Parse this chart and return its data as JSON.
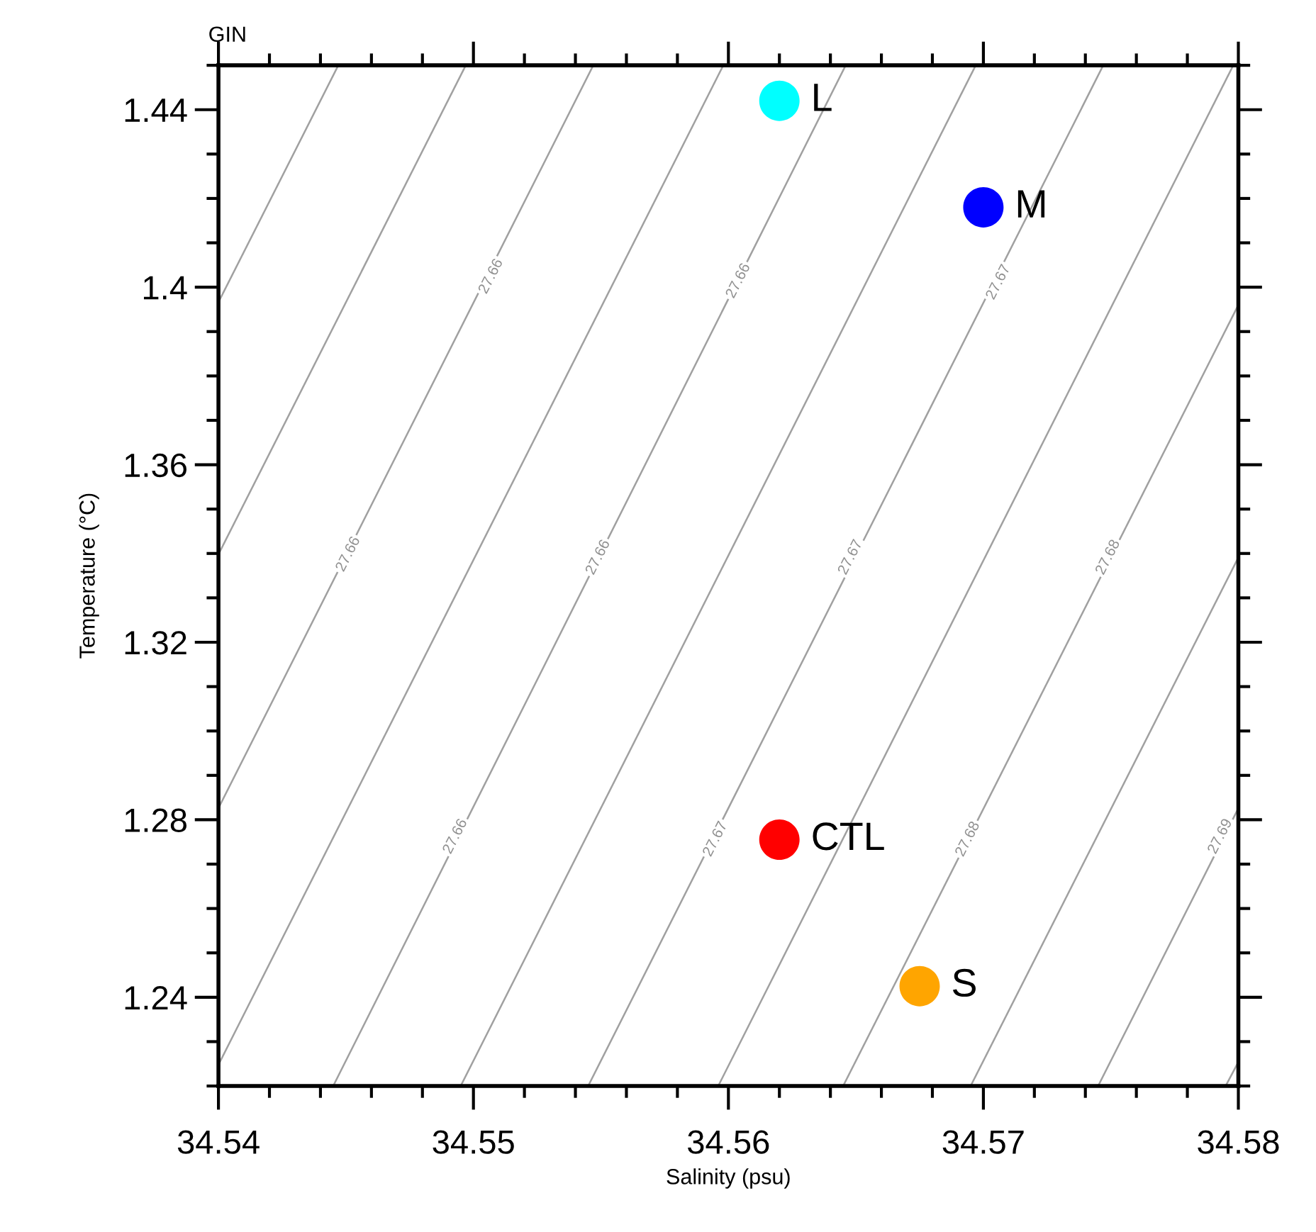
{
  "chart_data": {
    "type": "line",
    "title": "GIN",
    "xlabel": "Salinity (psu)",
    "ylabel": "Temperature (°C)",
    "xlim": [
      34.54,
      34.58
    ],
    "ylim": [
      1.22,
      1.45
    ],
    "xticks": [
      34.54,
      {
        "value": 34.542,
        "label": null
      },
      {
        "value": 34.544,
        "label": null
      },
      {
        "value": 34.546,
        "label": null
      },
      {
        "value": 34.548,
        "label": null
      },
      34.55,
      {
        "value": 34.552,
        "label": null
      },
      {
        "value": 34.554,
        "label": null
      },
      {
        "value": 34.556,
        "label": null
      },
      {
        "value": 34.558,
        "label": null
      },
      34.56,
      {
        "value": 34.562,
        "label": null
      },
      {
        "value": 34.564,
        "label": null
      },
      {
        "value": 34.566,
        "label": null
      },
      {
        "value": 34.568,
        "label": null
      },
      34.57,
      {
        "value": 34.572,
        "label": null
      },
      {
        "value": 34.574,
        "label": null
      },
      {
        "value": 34.576,
        "label": null
      },
      {
        "value": 34.578,
        "label": null
      },
      34.58
    ],
    "yticks": [
      {
        "value": 1.22,
        "label": null
      },
      {
        "value": 1.23,
        "label": null
      },
      1.24,
      {
        "value": 1.25,
        "label": null
      },
      {
        "value": 1.26,
        "label": null
      },
      {
        "value": 1.27,
        "label": null
      },
      1.28,
      {
        "value": 1.29,
        "label": null
      },
      {
        "value": 1.3,
        "label": null
      },
      {
        "value": 1.31,
        "label": null
      },
      1.32,
      {
        "value": 1.33,
        "label": null
      },
      {
        "value": 1.34,
        "label": null
      },
      {
        "value": 1.35,
        "label": null
      },
      1.36,
      {
        "value": 1.37,
        "label": null
      },
      {
        "value": 1.38,
        "label": null
      },
      {
        "value": 1.39,
        "label": null
      },
      1.4,
      {
        "value": 1.41,
        "label": null
      },
      {
        "value": 1.42,
        "label": null
      },
      {
        "value": 1.43,
        "label": null
      },
      1.44,
      {
        "value": 1.45,
        "label": null
      }
    ],
    "grid": false,
    "legend": false,
    "series": [
      {
        "color": "#a0a0a0",
        "x": [
          34.5447,
          34.54
        ],
        "values": [
          1.45,
          1.3966
        ]
      },
      {
        "color": "#a0a0a0",
        "x": [
          34.5497,
          34.54
        ],
        "values": [
          1.45,
          1.3398
        ]
      },
      {
        "color": "#a0a0a0",
        "x": [
          34.5547,
          34.54
        ],
        "values": [
          1.45,
          1.2826
        ]
      },
      {
        "color": "#a0a0a0",
        "x": [
          34.5598,
          34.54
        ],
        "values": [
          1.45,
          1.2248
        ]
      },
      {
        "color": "#a0a0a0",
        "x": [
          34.5646,
          34.5445
        ],
        "values": [
          1.45,
          1.22
        ]
      },
      {
        "color": "#a0a0a0",
        "x": [
          34.5697,
          34.5495
        ],
        "values": [
          1.45,
          1.22
        ]
      },
      {
        "color": "#a0a0a0",
        "x": [
          34.5747,
          34.5545
        ],
        "values": [
          1.45,
          1.22
        ]
      },
      {
        "color": "#a0a0a0",
        "x": [
          34.5798,
          34.5596
        ],
        "values": [
          1.45,
          1.22
        ]
      },
      {
        "color": "#a0a0a0",
        "x": [
          34.58,
          34.5645
        ],
        "values": [
          1.396,
          1.22
        ]
      },
      {
        "color": "#a0a0a0",
        "x": [
          34.58,
          34.5695
        ],
        "values": [
          1.3391,
          1.22
        ]
      },
      {
        "color": "#a0a0a0",
        "x": [
          34.58,
          34.5745
        ],
        "values": [
          1.2826,
          1.22
        ]
      },
      {
        "color": "#a0a0a0",
        "x": [
          34.58,
          34.5795
        ],
        "values": [
          1.2254,
          1.22
        ]
      },
      {
        "type": "scatter",
        "marker": "circle",
        "name": "L",
        "color": "#00ffff",
        "x": [
          34.562
        ],
        "values": [
          1.442
        ]
      },
      {
        "type": "scatter",
        "marker": "circle",
        "name": "M",
        "color": "#0000ff",
        "x": [
          34.57
        ],
        "values": [
          1.418
        ]
      },
      {
        "type": "scatter",
        "marker": "circle",
        "name": "CTL",
        "color": "#ff0000",
        "x": [
          34.562
        ],
        "values": [
          1.2755
        ]
      },
      {
        "type": "scatter",
        "marker": "circle",
        "name": "S",
        "color": "#ffa500",
        "x": [
          34.5675
        ],
        "values": [
          1.2425
        ]
      }
    ],
    "annotations": [
      {
        "text": "27.66",
        "x": 34.5507,
        "y": 1.4024
      },
      {
        "text": "27.66",
        "x": 34.5604,
        "y": 1.4014
      },
      {
        "text": "27.67",
        "x": 34.5706,
        "y": 1.4011
      },
      {
        "text": "27.66",
        "x": 34.5451,
        "y": 1.3398
      },
      {
        "text": "27.66",
        "x": 34.5549,
        "y": 1.3391
      },
      {
        "text": "27.67",
        "x": 34.5648,
        "y": 1.3391
      },
      {
        "text": "27.68",
        "x": 34.5749,
        "y": 1.3391
      },
      {
        "text": "27.66",
        "x": 34.5493,
        "y": 1.2762
      },
      {
        "text": "27.67",
        "x": 34.5595,
        "y": 1.2756
      },
      {
        "text": "27.68",
        "x": 34.5694,
        "y": 1.2756
      },
      {
        "text": "27.69",
        "x": 34.5793,
        "y": 1.2762
      }
    ]
  }
}
